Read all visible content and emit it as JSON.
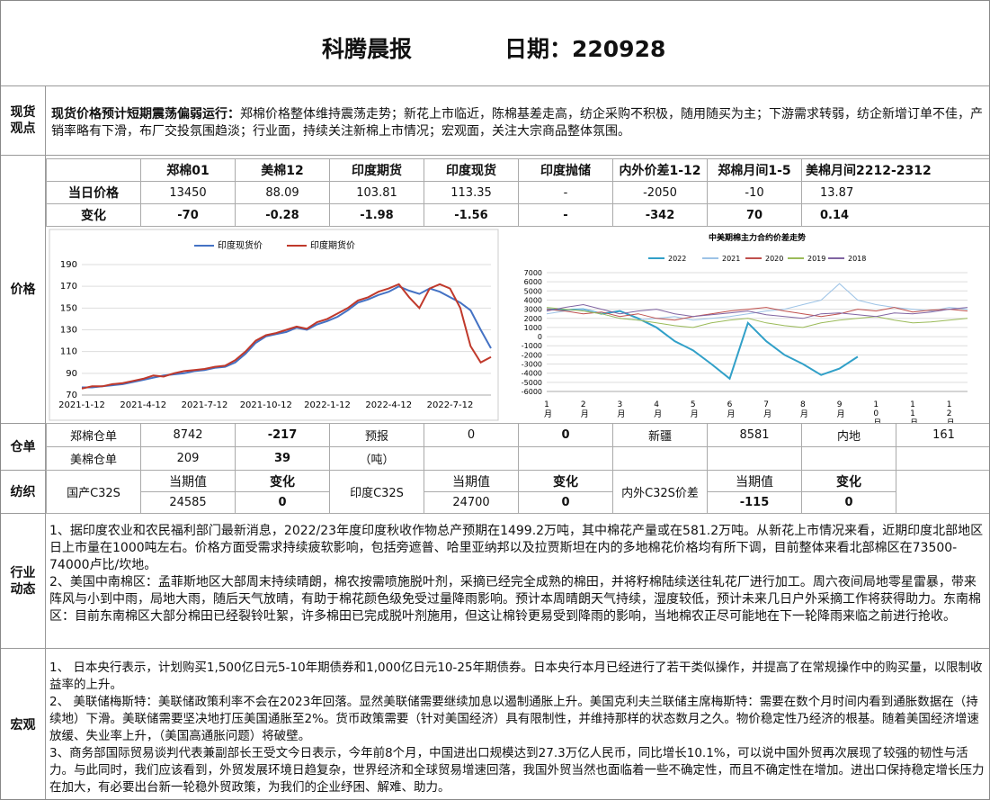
{
  "header": {
    "title": "科腾晨报",
    "date": "日期：220928"
  },
  "spot": {
    "label": "现货观点",
    "lead": "现货价格预计短期震荡偏弱运行：",
    "text": "郑棉价格整体维持震荡走势；新花上市临近，陈棉基差走高，纺企采购不积极，随用随买为主；下游需求转弱，纺企新增订单不佳，产销率略有下滑，布厂交投氛围趋淡；行业面，持续关注新棉上市情况；宏观面，关注大宗商品整体氛围。"
  },
  "price": {
    "label": "价格",
    "header": [
      "郑棉01",
      "美棉12",
      "印度期货",
      "印度现货",
      "印度抛储",
      "内外价差1-12",
      "郑棉月间1-5",
      "美棉月间2212-2312"
    ],
    "rows": [
      {
        "name": "当日价格",
        "cells": [
          "13450",
          "88.09",
          "103.81",
          "113.35",
          "-",
          "-2050",
          "-10",
          "13.87"
        ]
      },
      {
        "name": "变化",
        "cells": [
          "-70",
          "-0.28",
          "-1.98",
          "-1.56",
          "-",
          "-342",
          "70",
          "0.14"
        ]
      }
    ]
  },
  "warehouse": {
    "label": "仓单",
    "rows": [
      [
        "郑棉仓单",
        "8742",
        "-217",
        "预报",
        "0",
        "0",
        "新疆",
        "8581",
        "内地",
        "161"
      ],
      [
        "美棉仓单",
        "209",
        "39",
        "（吨）"
      ]
    ]
  },
  "textile": {
    "label": "纺织",
    "groups": [
      {
        "name": "国产C32S",
        "current_label": "当期值",
        "current": "24585",
        "change_label": "变化",
        "change": "0"
      },
      {
        "name": "印度C32S",
        "current_label": "当期值",
        "current": "24700",
        "change_label": "变化",
        "change": "0"
      },
      {
        "name": "内外C32S价差",
        "current_label": "当期值",
        "current": "-115",
        "change_label": "变化",
        "change": "0"
      }
    ]
  },
  "industry": {
    "label": "行业动态",
    "paragraphs": [
      "1、据印度农业和农民福利部门最新消息，2022/23年度印度秋收作物总产预期在1499.2万吨，其中棉花产量或在581.2万吨。从新花上市情况来看，近期印度北部地区日上市量在1000吨左右。价格方面受需求持续疲软影响，包括旁遮普、哈里亚纳邦以及拉贾斯坦在内的多地棉花价格均有所下调，目前整体来看北部棉区在73500-74000卢比/坎地。",
      "2、美国中南棉区：孟菲斯地区大部周末持续晴朗，棉农按需喷施脱叶剂，采摘已经完全成熟的棉田，并将籽棉陆续送往轧花厂进行加工。周六夜间局地零星雷暴，带来阵风与小到中雨，局地大雨，随后天气放晴，有助于棉花颜色级免受过量降雨影响。预计本周晴朗天气持续，湿度较低，预计未来几日户外采摘工作将获得助力。东南棉区：目前东南棉区大部分棉田已经裂铃吐絮，许多棉田已完成脱叶剂施用，但这让棉铃更易受到降雨的影响，当地棉农正尽可能地在下一轮降雨来临之前进行抢收。"
    ]
  },
  "macro": {
    "label": "宏观",
    "paragraphs": [
      "1、 日本央行表示，计划购买1,500亿日元5-10年期债券和1,000亿日元10-25年期债券。日本央行本月已经进行了若干类似操作，并提高了在常规操作中的购买量，以限制收益率的上升。",
      "2、 美联储梅斯特：美联储政策利率不会在2023年回落。显然美联储需要继续加息以遏制通胀上升。美国克利夫兰联储主席梅斯特：需要在数个月时间内看到通胀数据在（持续地）下滑。美联储需要坚决地打压美国通胀至2%。货币政策需要（针对美国经济）具有限制性，并维持那样的状态数月之久。物价稳定性乃经济的根基。随着美国经济增速放缓、失业率上升，（美国高通胀问题）将破壁。",
      "3、商务部国际贸易谈判代表兼副部长王受文今日表示，今年前8个月，中国进出口规模达到27.3万亿人民币，同比增长10.1%，可以说中国外贸再次展现了较强的韧性与活力。与此同时，我们应该看到，外贸发展环境日趋复杂，世界经济和全球贸易增速回落，我国外贸当然也面临着一些不确定性，而且不确定性在增加。进出口保持稳定增长压力在加大，有必要出台新一轮稳外贸政策，为我们的企业纾困、解难、助力。"
    ]
  },
  "chart_data": [
    {
      "type": "line",
      "grid": true,
      "categories": [
        "2021-1-12",
        null,
        null,
        null,
        null,
        null,
        "2021-4-12",
        null,
        null,
        null,
        null,
        null,
        "2021-7-12",
        null,
        null,
        null,
        null,
        null,
        "2021-10-12",
        null,
        null,
        null,
        null,
        null,
        "2022-1-12",
        null,
        null,
        null,
        null,
        null,
        "2022-4-12",
        null,
        null,
        null,
        null,
        null,
        "2022-7-12",
        null,
        null,
        null,
        null
      ],
      "ylim": [
        70,
        190
      ],
      "yticks": [
        70,
        90,
        110,
        130,
        150,
        170,
        190
      ],
      "series": [
        {
          "name": "印度现货价",
          "color": "#4472c4",
          "values": [
            77,
            77,
            78,
            79,
            80,
            82,
            84,
            86,
            88,
            89,
            90,
            92,
            93,
            95,
            96,
            100,
            108,
            118,
            124,
            126,
            128,
            132,
            130,
            135,
            138,
            142,
            148,
            155,
            158,
            162,
            165,
            170,
            166,
            163,
            168,
            165,
            160,
            155,
            148,
            130,
            113
          ]
        },
        {
          "name": "印度期货价",
          "color": "#c0392b",
          "values": [
            76,
            78,
            78,
            80,
            81,
            83,
            85,
            88,
            87,
            90,
            92,
            93,
            94,
            96,
            97,
            102,
            110,
            120,
            125,
            127,
            130,
            133,
            131,
            137,
            140,
            145,
            150,
            157,
            160,
            165,
            168,
            172,
            160,
            150,
            168,
            172,
            168,
            150,
            115,
            100,
            105
          ]
        }
      ]
    },
    {
      "type": "line",
      "grid": true,
      "title": "中美期棉主力合约价差走势",
      "categories": [
        "1月",
        null,
        "2月",
        null,
        "3月",
        null,
        "4月",
        null,
        "5月",
        null,
        "6月",
        null,
        "7月",
        null,
        "8月",
        null,
        "9月",
        null,
        "10月",
        null,
        "11月",
        null,
        "12月",
        null
      ],
      "ylim": [
        -6000,
        7000
      ],
      "yticks": [
        -6000,
        -5000,
        -4000,
        -3000,
        -2000,
        -1000,
        0,
        1000,
        2000,
        3000,
        4000,
        5000,
        6000,
        7000
      ],
      "series": [
        {
          "name": "2022",
          "color": "#31a0c8",
          "values": [
            3000,
            2900,
            3000,
            2500,
            2800,
            2000,
            1000,
            -500,
            -1500,
            -3000,
            -4600,
            1500,
            -500,
            -2000,
            -3000,
            -4200,
            -3500,
            -2200,
            null,
            null,
            null,
            null,
            null,
            null
          ]
        },
        {
          "name": "2021",
          "color": "#9dc3e6",
          "values": [
            2500,
            2800,
            3000,
            2500,
            2000,
            1800,
            2000,
            2200,
            1800,
            2000,
            2200,
            2500,
            2800,
            3000,
            3500,
            4000,
            5800,
            4000,
            3500,
            3200,
            3000,
            2800,
            3200,
            3000
          ]
        },
        {
          "name": "2020",
          "color": "#c0504d",
          "values": [
            3000,
            2800,
            2500,
            2700,
            2200,
            2500,
            2000,
            1800,
            2200,
            2500,
            2800,
            3000,
            3200,
            2800,
            2500,
            2200,
            2500,
            3000,
            2800,
            3200,
            2700,
            2900,
            3000,
            2800
          ]
        },
        {
          "name": "2019",
          "color": "#9bbb59",
          "values": [
            3200,
            3000,
            2800,
            2500,
            2000,
            1800,
            1500,
            1200,
            1000,
            1500,
            1800,
            2000,
            1500,
            1200,
            1000,
            1500,
            1800,
            2000,
            2200,
            1800,
            1500,
            1600,
            1800,
            2000
          ]
        },
        {
          "name": "2018",
          "color": "#8064a2",
          "values": [
            2800,
            3200,
            3500,
            3000,
            2500,
            2800,
            3000,
            2500,
            2200,
            2400,
            2600,
            2800,
            2400,
            2200,
            2000,
            2500,
            2600,
            2400,
            2200,
            2600,
            2500,
            2700,
            3000,
            3200
          ]
        }
      ]
    }
  ]
}
